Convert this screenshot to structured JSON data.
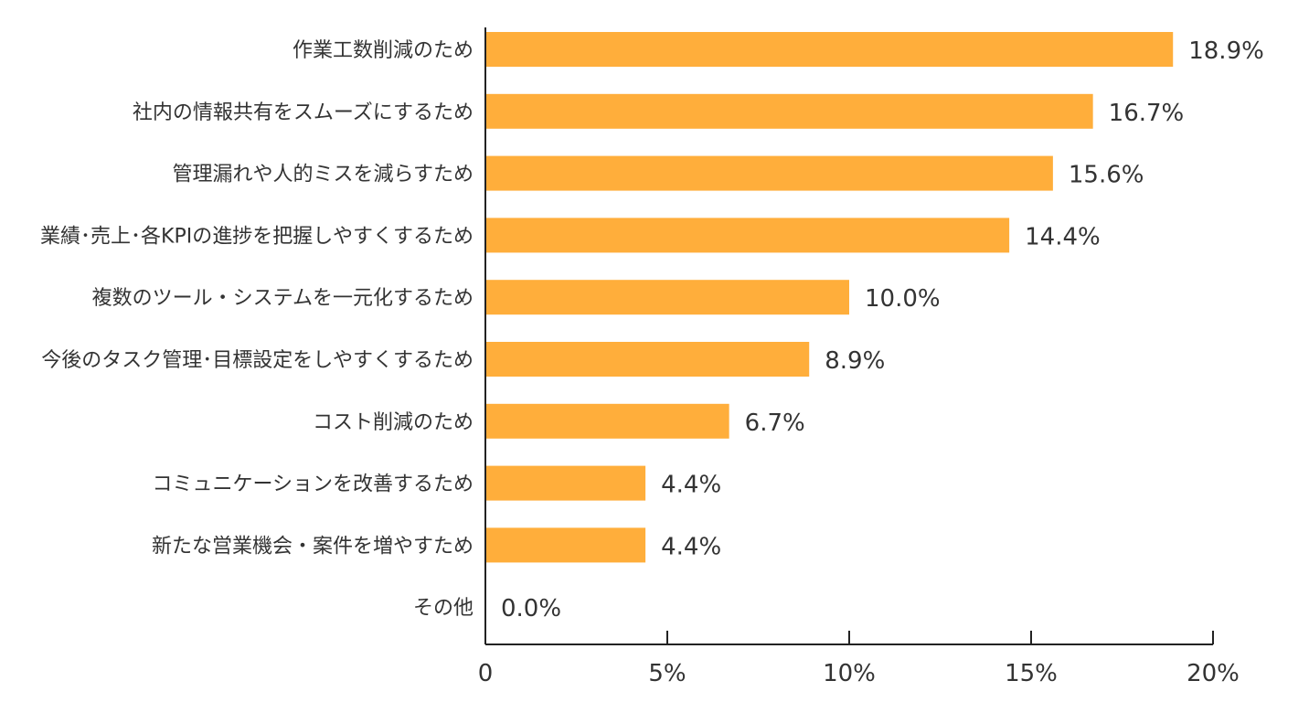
{
  "chart_data": {
    "type": "bar",
    "orientation": "horizontal",
    "title": "",
    "xlabel": "",
    "ylabel": "",
    "categories": [
      "作業工数削減のため",
      "社内の情報共有をスムーズにするため",
      "管理漏れや人的ミスを減らすため",
      "業績･売上･各KPIの進捗を把握しやすくするため",
      "複数のツール・システムを一元化するため",
      "今後のタスク管理･目標設定をしやすくするため",
      "コスト削減のため",
      "コミュニケーションを改善するため",
      "新たな営業機会・案件を増やすため",
      "その他"
    ],
    "values": [
      18.9,
      16.7,
      15.6,
      14.4,
      10.0,
      8.9,
      6.7,
      4.4,
      4.4,
      0.0
    ],
    "data_labels": [
      "18.9%",
      "16.7%",
      "15.6%",
      "14.4%",
      "10.0%",
      "8.9%",
      "6.7%",
      "4.4%",
      "4.4%",
      "0.0%"
    ],
    "xlim": [
      0,
      20
    ],
    "xticks": [
      0,
      5,
      10,
      15,
      20
    ],
    "xtick_labels": [
      "0",
      "5%",
      "10%",
      "15%",
      "20%"
    ],
    "grid": false,
    "legend": "none",
    "bar_color": "#FFAE3B",
    "axis_color": "#222222"
  }
}
